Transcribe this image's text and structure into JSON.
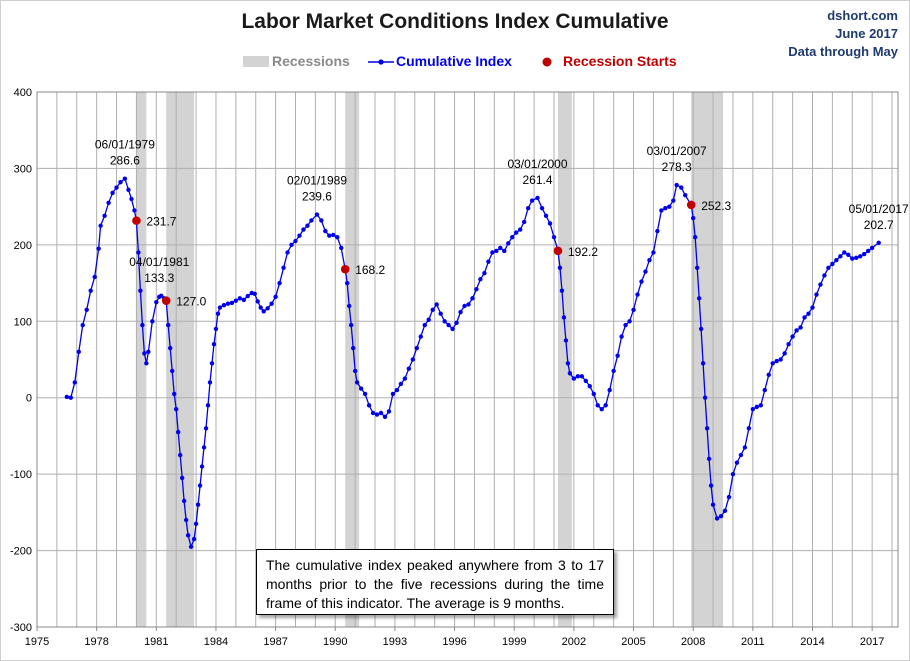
{
  "header": {
    "title": "Labor Market Conditions Index Cumulative",
    "source": "dshort.com",
    "date": "June 2017",
    "data_through": "Data through May"
  },
  "legend": {
    "recessions": "Recessions",
    "cumulative": "Cumulative Index",
    "starts": "Recession Starts"
  },
  "note": "The cumulative index peaked anywhere from 3 to 17 months prior to the five recessions during the time frame of this indicator. The average is 9 months.",
  "colors": {
    "line": "#0000ee",
    "recession_start": "#c00000",
    "recession_band": "#d3d3d3",
    "grid": "#b0b0b0"
  },
  "chart_data": {
    "type": "line",
    "title": "Labor Market Conditions Index Cumulative",
    "xlim": [
      1975,
      2018.3
    ],
    "ylim": [
      -300,
      400
    ],
    "x_ticks": [
      1975,
      1978,
      1981,
      1984,
      1987,
      1990,
      1993,
      1996,
      1999,
      2002,
      2005,
      2008,
      2011,
      2014,
      2017
    ],
    "y_ticks": [
      -300,
      -200,
      -100,
      0,
      100,
      200,
      300,
      400
    ],
    "recessions": [
      {
        "start": 1980.0,
        "end": 1980.5
      },
      {
        "start": 1981.5,
        "end": 1982.9
      },
      {
        "start": 1990.5,
        "end": 1991.2
      },
      {
        "start": 2001.2,
        "end": 2001.9
      },
      {
        "start": 2007.9,
        "end": 2009.5
      }
    ],
    "series": [
      {
        "name": "Cumulative Index",
        "points": [
          [
            1976.5,
            1
          ],
          [
            1976.7,
            0
          ],
          [
            1976.9,
            20
          ],
          [
            1977.1,
            60
          ],
          [
            1977.3,
            95
          ],
          [
            1977.5,
            115
          ],
          [
            1977.7,
            140
          ],
          [
            1977.9,
            158
          ],
          [
            1978.1,
            195
          ],
          [
            1978.2,
            225
          ],
          [
            1978.4,
            238
          ],
          [
            1978.6,
            255
          ],
          [
            1978.8,
            268
          ],
          [
            1979.0,
            275
          ],
          [
            1979.2,
            282
          ],
          [
            1979.42,
            286.6
          ],
          [
            1979.6,
            272
          ],
          [
            1979.75,
            260
          ],
          [
            1979.9,
            245
          ],
          [
            1980.0,
            231.7
          ],
          [
            1980.1,
            190
          ],
          [
            1980.2,
            140
          ],
          [
            1980.3,
            95
          ],
          [
            1980.4,
            58
          ],
          [
            1980.5,
            45
          ],
          [
            1980.6,
            60
          ],
          [
            1980.8,
            100
          ],
          [
            1981.0,
            125
          ],
          [
            1981.15,
            132
          ],
          [
            1981.25,
            133.3
          ],
          [
            1981.4,
            130
          ],
          [
            1981.5,
            127.0
          ],
          [
            1981.6,
            95
          ],
          [
            1981.7,
            65
          ],
          [
            1981.8,
            35
          ],
          [
            1981.9,
            5
          ],
          [
            1982.0,
            -15
          ],
          [
            1982.1,
            -45
          ],
          [
            1982.2,
            -75
          ],
          [
            1982.3,
            -105
          ],
          [
            1982.4,
            -135
          ],
          [
            1982.5,
            -160
          ],
          [
            1982.6,
            -180
          ],
          [
            1982.75,
            -195
          ],
          [
            1982.9,
            -185
          ],
          [
            1983.0,
            -165
          ],
          [
            1983.1,
            -140
          ],
          [
            1983.2,
            -115
          ],
          [
            1983.3,
            -90
          ],
          [
            1983.4,
            -65
          ],
          [
            1983.5,
            -40
          ],
          [
            1983.6,
            -10
          ],
          [
            1983.7,
            20
          ],
          [
            1983.8,
            45
          ],
          [
            1983.9,
            70
          ],
          [
            1984.0,
            90
          ],
          [
            1984.1,
            110
          ],
          [
            1984.2,
            118
          ],
          [
            1984.4,
            121
          ],
          [
            1984.6,
            123
          ],
          [
            1984.8,
            124
          ],
          [
            1985.0,
            127
          ],
          [
            1985.2,
            130
          ],
          [
            1985.4,
            128
          ],
          [
            1985.6,
            133
          ],
          [
            1985.8,
            137
          ],
          [
            1985.95,
            136
          ],
          [
            1986.1,
            126
          ],
          [
            1986.25,
            118
          ],
          [
            1986.4,
            113
          ],
          [
            1986.6,
            117
          ],
          [
            1986.8,
            123
          ],
          [
            1987.0,
            132
          ],
          [
            1987.2,
            150
          ],
          [
            1987.4,
            170
          ],
          [
            1987.6,
            190
          ],
          [
            1987.8,
            200
          ],
          [
            1988.0,
            205
          ],
          [
            1988.2,
            212
          ],
          [
            1988.4,
            220
          ],
          [
            1988.6,
            225
          ],
          [
            1988.8,
            232
          ],
          [
            1989.08,
            239.6
          ],
          [
            1989.3,
            232
          ],
          [
            1989.5,
            218
          ],
          [
            1989.7,
            212
          ],
          [
            1989.9,
            213
          ],
          [
            1990.1,
            210
          ],
          [
            1990.3,
            196
          ],
          [
            1990.5,
            168.2
          ],
          [
            1990.6,
            150
          ],
          [
            1990.7,
            120
          ],
          [
            1990.8,
            95
          ],
          [
            1990.9,
            65
          ],
          [
            1991.0,
            35
          ],
          [
            1991.1,
            20
          ],
          [
            1991.3,
            12
          ],
          [
            1991.5,
            5
          ],
          [
            1991.7,
            -10
          ],
          [
            1991.9,
            -20
          ],
          [
            1992.1,
            -22
          ],
          [
            1992.3,
            -20
          ],
          [
            1992.5,
            -25
          ],
          [
            1992.7,
            -18
          ],
          [
            1992.9,
            5
          ],
          [
            1993.1,
            10
          ],
          [
            1993.3,
            18
          ],
          [
            1993.5,
            25
          ],
          [
            1993.7,
            38
          ],
          [
            1993.9,
            50
          ],
          [
            1994.1,
            65
          ],
          [
            1994.3,
            80
          ],
          [
            1994.5,
            95
          ],
          [
            1994.7,
            102
          ],
          [
            1994.9,
            115
          ],
          [
            1995.1,
            122
          ],
          [
            1995.3,
            110
          ],
          [
            1995.5,
            100
          ],
          [
            1995.7,
            95
          ],
          [
            1995.9,
            90
          ],
          [
            1996.1,
            98
          ],
          [
            1996.3,
            112
          ],
          [
            1996.5,
            120
          ],
          [
            1996.7,
            122
          ],
          [
            1996.9,
            130
          ],
          [
            1997.1,
            142
          ],
          [
            1997.3,
            155
          ],
          [
            1997.5,
            163
          ],
          [
            1997.7,
            178
          ],
          [
            1997.9,
            190
          ],
          [
            1998.1,
            192
          ],
          [
            1998.3,
            196
          ],
          [
            1998.5,
            192
          ],
          [
            1998.7,
            202
          ],
          [
            1998.9,
            210
          ],
          [
            1999.1,
            216
          ],
          [
            1999.3,
            220
          ],
          [
            1999.5,
            230
          ],
          [
            1999.7,
            248
          ],
          [
            1999.9,
            258
          ],
          [
            2000.17,
            261.4
          ],
          [
            2000.4,
            248
          ],
          [
            2000.6,
            238
          ],
          [
            2000.8,
            228
          ],
          [
            2001.0,
            210
          ],
          [
            2001.2,
            192.2
          ],
          [
            2001.3,
            170
          ],
          [
            2001.4,
            140
          ],
          [
            2001.5,
            105
          ],
          [
            2001.6,
            75
          ],
          [
            2001.7,
            45
          ],
          [
            2001.8,
            32
          ],
          [
            2002.0,
            25
          ],
          [
            2002.2,
            28
          ],
          [
            2002.4,
            28
          ],
          [
            2002.6,
            22
          ],
          [
            2002.8,
            15
          ],
          [
            2003.0,
            5
          ],
          [
            2003.2,
            -10
          ],
          [
            2003.4,
            -15
          ],
          [
            2003.6,
            -10
          ],
          [
            2003.8,
            10
          ],
          [
            2004.0,
            35
          ],
          [
            2004.2,
            55
          ],
          [
            2004.4,
            80
          ],
          [
            2004.6,
            95
          ],
          [
            2004.8,
            100
          ],
          [
            2005.0,
            115
          ],
          [
            2005.2,
            135
          ],
          [
            2005.4,
            152
          ],
          [
            2005.6,
            165
          ],
          [
            2005.8,
            180
          ],
          [
            2006.0,
            190
          ],
          [
            2006.2,
            218
          ],
          [
            2006.4,
            245
          ],
          [
            2006.6,
            248
          ],
          [
            2006.8,
            250
          ],
          [
            2007.0,
            258
          ],
          [
            2007.17,
            278.3
          ],
          [
            2007.4,
            275
          ],
          [
            2007.6,
            265
          ],
          [
            2007.9,
            252.3
          ],
          [
            2008.0,
            235
          ],
          [
            2008.1,
            210
          ],
          [
            2008.2,
            170
          ],
          [
            2008.3,
            130
          ],
          [
            2008.4,
            90
          ],
          [
            2008.5,
            45
          ],
          [
            2008.6,
            0
          ],
          [
            2008.7,
            -40
          ],
          [
            2008.8,
            -80
          ],
          [
            2008.9,
            -115
          ],
          [
            2009.0,
            -140
          ],
          [
            2009.2,
            -158
          ],
          [
            2009.4,
            -155
          ],
          [
            2009.6,
            -148
          ],
          [
            2009.8,
            -130
          ],
          [
            2010.0,
            -100
          ],
          [
            2010.2,
            -85
          ],
          [
            2010.4,
            -75
          ],
          [
            2010.6,
            -65
          ],
          [
            2010.8,
            -40
          ],
          [
            2011.0,
            -15
          ],
          [
            2011.2,
            -12
          ],
          [
            2011.4,
            -10
          ],
          [
            2011.6,
            10
          ],
          [
            2011.8,
            30
          ],
          [
            2012.0,
            45
          ],
          [
            2012.2,
            48
          ],
          [
            2012.4,
            50
          ],
          [
            2012.6,
            58
          ],
          [
            2012.8,
            70
          ],
          [
            2013.0,
            80
          ],
          [
            2013.2,
            88
          ],
          [
            2013.4,
            92
          ],
          [
            2013.6,
            105
          ],
          [
            2013.8,
            110
          ],
          [
            2014.0,
            118
          ],
          [
            2014.2,
            135
          ],
          [
            2014.4,
            148
          ],
          [
            2014.6,
            160
          ],
          [
            2014.8,
            170
          ],
          [
            2015.0,
            175
          ],
          [
            2015.2,
            180
          ],
          [
            2015.4,
            185
          ],
          [
            2015.6,
            190
          ],
          [
            2015.8,
            187
          ],
          [
            2016.0,
            182
          ],
          [
            2016.2,
            183
          ],
          [
            2016.4,
            185
          ],
          [
            2016.6,
            188
          ],
          [
            2016.8,
            192
          ],
          [
            2017.0,
            196
          ],
          [
            2017.33,
            202.7
          ]
        ]
      }
    ],
    "recession_starts": [
      {
        "x": 1980.0,
        "y": 231.7,
        "label": "231.7"
      },
      {
        "x": 1981.5,
        "y": 127.0,
        "label": "127.0"
      },
      {
        "x": 1990.5,
        "y": 168.2,
        "label": "168.2"
      },
      {
        "x": 2001.2,
        "y": 192.2,
        "label": "192.2"
      },
      {
        "x": 2007.9,
        "y": 252.3,
        "label": "252.3"
      }
    ],
    "annotations": [
      {
        "x": 1979.42,
        "y": 286.6,
        "date": "06/01/1979",
        "value": "286.6"
      },
      {
        "x": 1981.25,
        "y": 133.3,
        "date": "04/01/1981",
        "value": "133.3"
      },
      {
        "x": 1989.08,
        "y": 239.6,
        "date": "02/01/1989",
        "value": "239.6"
      },
      {
        "x": 2000.17,
        "y": 261.4,
        "date": "03/01/2000",
        "value": "261.4"
      },
      {
        "x": 2007.17,
        "y": 278.3,
        "date": "03/01/2007",
        "value": "278.3"
      },
      {
        "x": 2017.33,
        "y": 202.7,
        "date": "05/01/2017",
        "value": "202.7"
      }
    ]
  }
}
